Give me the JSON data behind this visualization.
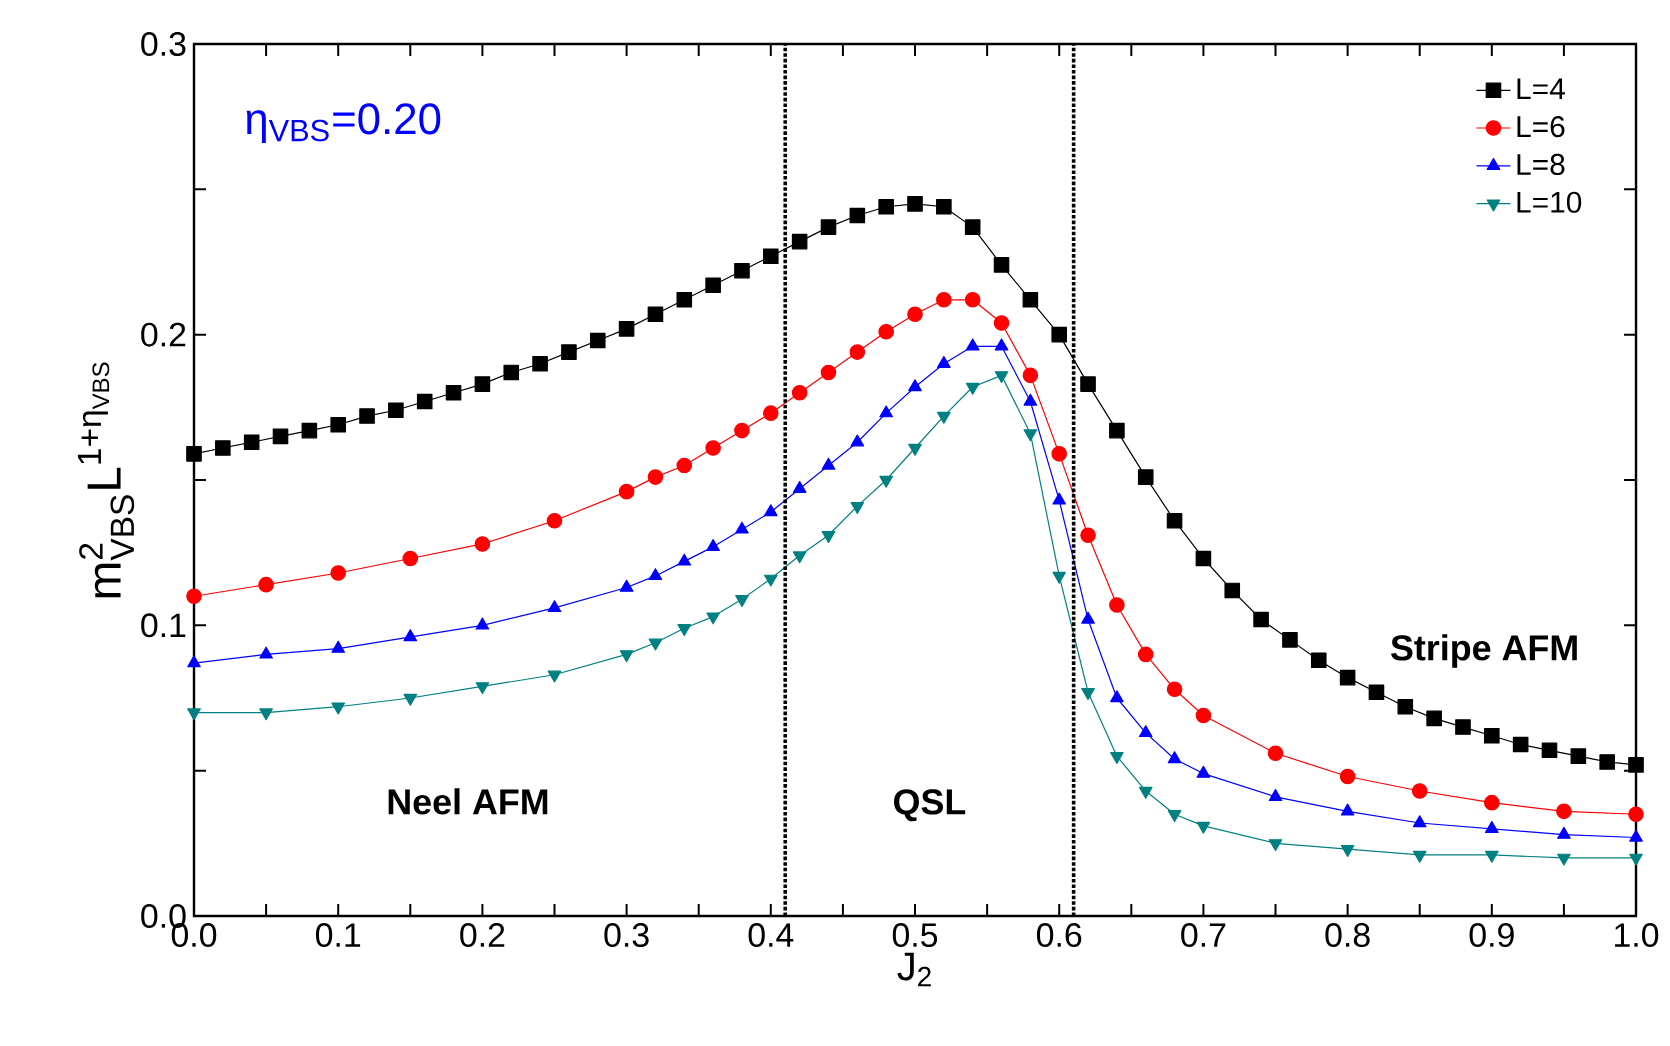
{
  "chart_data": {
    "type": "line",
    "xlabel": "J$_{2}$",
    "ylabel": "\\text{m}^{\\text{2}}_{\\text{VBS}}\\text{L}^{\\text{1+η}_{\\text{VBS}}}",
    "annotations": [
      "η$_{VBS}$=0.20",
      "Neel AFM",
      "QSL",
      "Stripe AFM"
    ],
    "xlim": [
      0,
      1
    ],
    "ylim": [
      0,
      0.3
    ],
    "xticks": [
      {
        "value": 0,
        "label": "0.0"
      },
      {
        "value": 0.05,
        "label": null
      },
      {
        "value": 0.1,
        "label": "0.1"
      },
      {
        "value": 0.15,
        "label": null
      },
      {
        "value": 0.2,
        "label": "0.2"
      },
      {
        "value": 0.25,
        "label": null
      },
      {
        "value": 0.3,
        "label": "0.3"
      },
      {
        "value": 0.35,
        "label": null
      },
      {
        "value": 0.4,
        "label": "0.4"
      },
      {
        "value": 0.45,
        "label": null
      },
      {
        "value": 0.5,
        "label": "0.5"
      },
      {
        "value": 0.55,
        "label": null
      },
      {
        "value": 0.6,
        "label": "0.6"
      },
      {
        "value": 0.65,
        "label": null
      },
      {
        "value": 0.7,
        "label": "0.7"
      },
      {
        "value": 0.75,
        "label": null
      },
      {
        "value": 0.8,
        "label": "0.8"
      },
      {
        "value": 0.85,
        "label": null
      },
      {
        "value": 0.9,
        "label": "0.9"
      },
      {
        "value": 0.95,
        "label": null
      },
      {
        "value": 1,
        "label": "1.0"
      }
    ],
    "yticks": [
      {
        "value": 0,
        "label": "0.0"
      },
      {
        "value": 0.05,
        "label": null
      },
      {
        "value": 0.1,
        "label": "0.1"
      },
      {
        "value": 0.15,
        "label": null
      },
      {
        "value": 0.2,
        "label": "0.2"
      },
      {
        "value": 0.25,
        "label": null
      },
      {
        "value": 0.3,
        "label": "0.3"
      }
    ],
    "ref_lines": [
      {
        "axis": "x",
        "value": 0.41,
        "color": "#000000",
        "line_style": "dotted"
      },
      {
        "axis": "x",
        "value": 0.61,
        "color": "#000000",
        "line_style": "dotted"
      }
    ],
    "legend": "top right",
    "grid": false,
    "series": [
      {
        "name": "L=4",
        "color": "#000000",
        "marker": "square",
        "x": [
          0,
          0.02,
          0.04,
          0.06,
          0.08,
          0.1,
          0.12,
          0.14,
          0.16,
          0.18,
          0.2,
          0.22,
          0.24,
          0.26,
          0.28,
          0.3,
          0.32,
          0.34,
          0.36,
          0.38,
          0.4,
          0.42,
          0.44,
          0.46,
          0.48,
          0.5,
          0.52,
          0.54,
          0.56,
          0.58,
          0.6,
          0.62,
          0.64,
          0.66,
          0.68,
          0.7,
          0.72,
          0.74,
          0.76,
          0.78,
          0.8,
          0.82,
          0.84,
          0.86,
          0.88,
          0.9,
          0.92,
          0.94,
          0.96,
          0.98,
          1.0
        ],
        "values": [
          0.159,
          0.161,
          0.163,
          0.165,
          0.167,
          0.169,
          0.172,
          0.174,
          0.177,
          0.18,
          0.183,
          0.187,
          0.19,
          0.194,
          0.198,
          0.202,
          0.207,
          0.212,
          0.217,
          0.222,
          0.227,
          0.232,
          0.237,
          0.241,
          0.244,
          0.245,
          0.244,
          0.237,
          0.224,
          0.212,
          0.2,
          0.183,
          0.167,
          0.151,
          0.136,
          0.123,
          0.112,
          0.102,
          0.095,
          0.088,
          0.082,
          0.077,
          0.072,
          0.068,
          0.065,
          0.062,
          0.059,
          0.057,
          0.055,
          0.053,
          0.052
        ]
      },
      {
        "name": "L=6",
        "color": "#ff0000",
        "marker": "circle",
        "x": [
          0,
          0.05,
          0.1,
          0.15,
          0.2,
          0.25,
          0.3,
          0.32,
          0.34,
          0.36,
          0.38,
          0.4,
          0.42,
          0.44,
          0.46,
          0.48,
          0.5,
          0.52,
          0.54,
          0.56,
          0.58,
          0.6,
          0.62,
          0.64,
          0.66,
          0.68,
          0.7,
          0.75,
          0.8,
          0.85,
          0.9,
          0.95,
          1.0
        ],
        "values": [
          0.11,
          0.114,
          0.118,
          0.123,
          0.128,
          0.136,
          0.146,
          0.151,
          0.155,
          0.161,
          0.167,
          0.173,
          0.18,
          0.187,
          0.194,
          0.201,
          0.207,
          0.212,
          0.212,
          0.204,
          0.186,
          0.159,
          0.131,
          0.107,
          0.09,
          0.078,
          0.069,
          0.056,
          0.048,
          0.043,
          0.039,
          0.036,
          0.035
        ]
      },
      {
        "name": "L=8",
        "color": "#0000ff",
        "marker": "triangle",
        "x": [
          0,
          0.05,
          0.1,
          0.15,
          0.2,
          0.25,
          0.3,
          0.32,
          0.34,
          0.36,
          0.38,
          0.4,
          0.42,
          0.44,
          0.46,
          0.48,
          0.5,
          0.52,
          0.54,
          0.56,
          0.58,
          0.6,
          0.62,
          0.64,
          0.66,
          0.68,
          0.7,
          0.75,
          0.8,
          0.85,
          0.9,
          0.95,
          1.0
        ],
        "values": [
          0.087,
          0.09,
          0.092,
          0.096,
          0.1,
          0.106,
          0.113,
          0.117,
          0.122,
          0.127,
          0.133,
          0.139,
          0.147,
          0.155,
          0.163,
          0.173,
          0.182,
          0.19,
          0.196,
          0.196,
          0.177,
          0.143,
          0.102,
          0.075,
          0.063,
          0.054,
          0.049,
          0.041,
          0.036,
          0.032,
          0.03,
          0.028,
          0.027
        ]
      },
      {
        "name": "L=10",
        "color": "#008080",
        "marker": "triangle-down",
        "x": [
          0,
          0.05,
          0.1,
          0.15,
          0.2,
          0.25,
          0.3,
          0.32,
          0.34,
          0.36,
          0.38,
          0.4,
          0.42,
          0.44,
          0.46,
          0.48,
          0.5,
          0.52,
          0.54,
          0.56,
          0.58,
          0.6,
          0.62,
          0.64,
          0.66,
          0.68,
          0.7,
          0.75,
          0.8,
          0.85,
          0.9,
          0.95,
          1.0
        ],
        "values": [
          0.07,
          0.07,
          0.072,
          0.075,
          0.079,
          0.083,
          0.09,
          0.094,
          0.099,
          0.103,
          0.109,
          0.116,
          0.124,
          0.131,
          0.141,
          0.15,
          0.161,
          0.172,
          0.182,
          0.186,
          0.166,
          0.117,
          0.077,
          0.055,
          0.043,
          0.035,
          0.031,
          0.025,
          0.023,
          0.021,
          0.021,
          0.02,
          0.02
        ]
      }
    ]
  }
}
